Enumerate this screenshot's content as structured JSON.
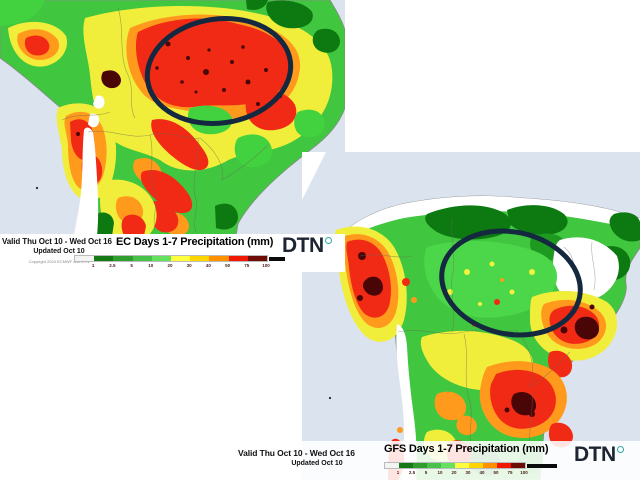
{
  "colors": {
    "ocean": "#dbe3ee",
    "annotation": "#14293f",
    "logo_text": "#1c2531",
    "logo_ring": "#31a8a8"
  },
  "scale": {
    "ticks": [
      "1",
      "2.5",
      "5",
      "10",
      "20",
      "30",
      "40",
      "50",
      "75",
      "100"
    ],
    "segment_colors": [
      "#f4f4f4",
      "#157a15",
      "#2f9e2f",
      "#47c147",
      "#66e05f",
      "#ffff3d",
      "#ffd400",
      "#ff9000",
      "#f01800",
      "#6e0d06"
    ]
  },
  "ec_panel": {
    "valid": "Valid Thu Oct 10 - Wed Oct 16",
    "updated": "Updated Oct 10",
    "copyright": "Copyright 2024 ECMWF and DTN",
    "title": "EC Days 1-7 Precipitation (mm)",
    "logo": "DTN"
  },
  "gfs_panel": {
    "valid": "Valid Thu Oct 10 - Wed Oct 16",
    "updated": "Updated Oct 10",
    "title": "GFS Days 1-7 Precipitation (mm)",
    "logo": "DTN"
  }
}
